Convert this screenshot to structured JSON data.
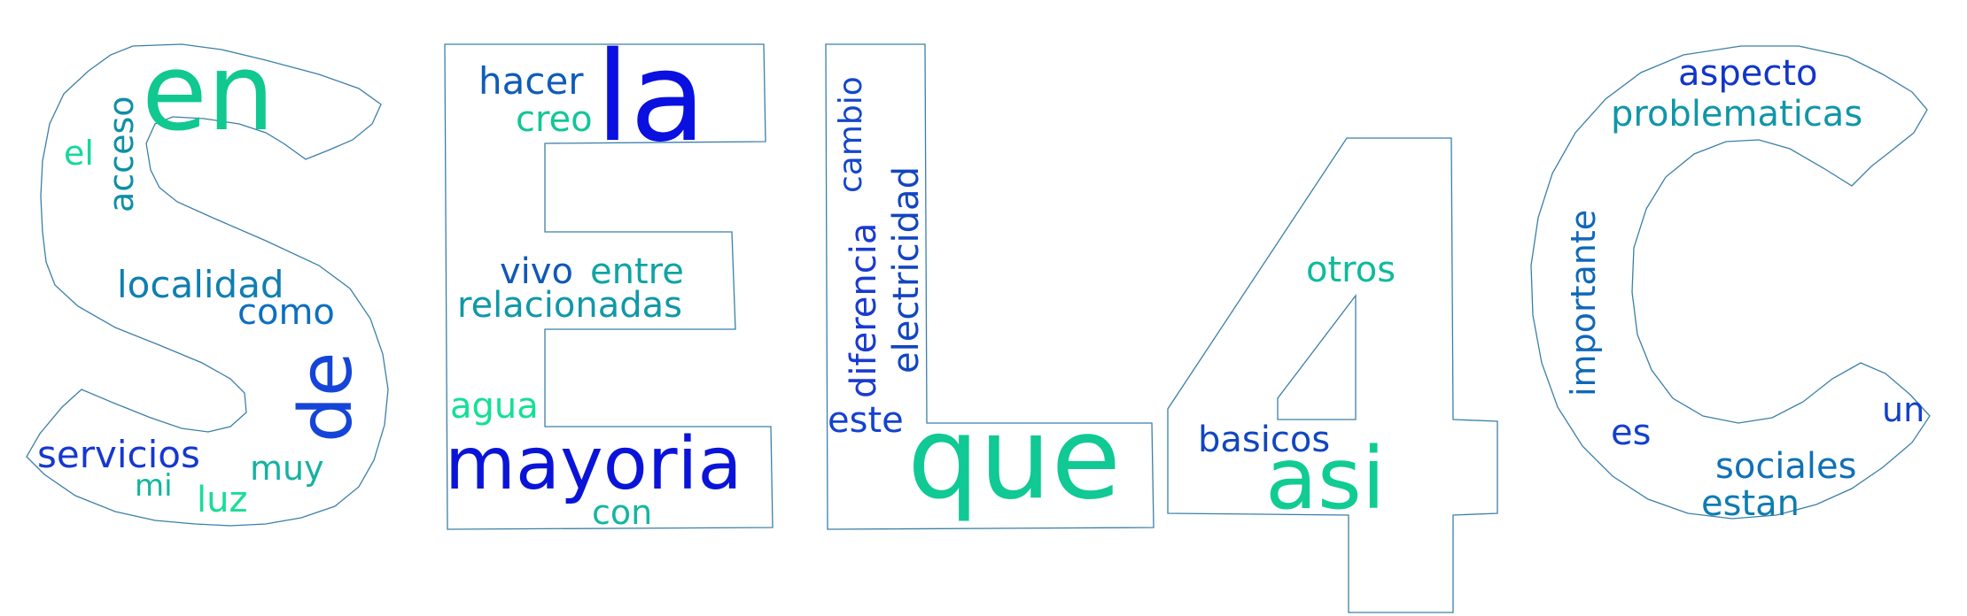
{
  "colors": {
    "outline": "#3b7fa8",
    "blue": "#0a1fd6",
    "royal": "#1a3fd0",
    "teal": "#0a92a8",
    "tealdark": "#0f7fa8",
    "green": "#12c98e",
    "mint": "#14d99a"
  },
  "words": [
    {
      "text": "en",
      "color": "#10c890"
    },
    {
      "text": "acceso",
      "color": "#0f8fa6"
    },
    {
      "text": "el",
      "color": "#14d99a"
    },
    {
      "text": "localidad",
      "color": "#0f7fb0"
    },
    {
      "text": "como",
      "color": "#0d6fc0"
    },
    {
      "text": "de",
      "color": "#1545d8"
    },
    {
      "text": "servicios",
      "color": "#1638d0"
    },
    {
      "text": "muy",
      "color": "#16b2a0"
    },
    {
      "text": "mi",
      "color": "#12b89a"
    },
    {
      "text": "luz",
      "color": "#18dd98"
    },
    {
      "text": "hacer",
      "color": "#0f5cb8"
    },
    {
      "text": "la",
      "color": "#0a10e0"
    },
    {
      "text": "creo",
      "color": "#13c696"
    },
    {
      "text": "vivo",
      "color": "#1058b8"
    },
    {
      "text": "entre",
      "color": "#0fa4a4"
    },
    {
      "text": "relacionadas",
      "color": "#0f98a8"
    },
    {
      "text": "agua",
      "color": "#14e094"
    },
    {
      "text": "mayoria",
      "color": "#0a14d8"
    },
    {
      "text": "con",
      "color": "#14b6a0"
    },
    {
      "text": "cambio",
      "color": "#1448c8"
    },
    {
      "text": "diferencia",
      "color": "#1a3ad0"
    },
    {
      "text": "electricidad",
      "color": "#1246c0"
    },
    {
      "text": "este",
      "color": "#1442d0"
    },
    {
      "text": "que",
      "color": "#10c994"
    },
    {
      "text": "otros",
      "color": "#10ba9c"
    },
    {
      "text": "basicos",
      "color": "#1246c0"
    },
    {
      "text": "asi",
      "color": "#10cc92"
    },
    {
      "text": "aspecto",
      "color": "#1236c8"
    },
    {
      "text": "problematicas",
      "color": "#0f96a8"
    },
    {
      "text": "importante",
      "color": "#1068b8"
    },
    {
      "text": "es",
      "color": "#1440d0"
    },
    {
      "text": "un",
      "color": "#1240c8"
    },
    {
      "text": "sociales",
      "color": "#1070b8"
    },
    {
      "text": "estan",
      "color": "#0f7cb0"
    }
  ]
}
